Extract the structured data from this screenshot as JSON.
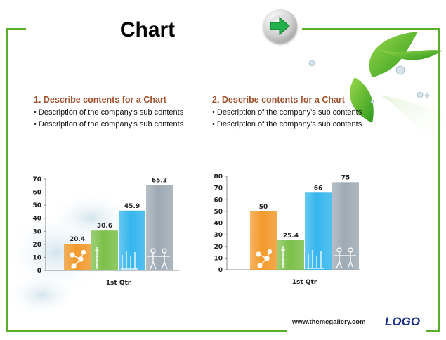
{
  "slide": {
    "title": "Chart",
    "website": "www.themegallery.com",
    "logo": "LOGO",
    "accent_color": "#5aae2a",
    "heading_color": "#a0522d",
    "next_button_icon": "green-right-arrow-icon"
  },
  "sections": [
    {
      "heading": "1. Describe contents for a Chart",
      "bullets": [
        "• Description of the company's sub contents",
        "• Description of the company's sub contents"
      ]
    },
    {
      "heading": "2. Describe contents for a Chart",
      "bullets": [
        "• Description of the company's sub contents",
        "• Description of the company's sub contents"
      ]
    }
  ],
  "chart_data": [
    {
      "type": "bar",
      "categories": [
        "1st Qtr"
      ],
      "series": [
        {
          "values": [
            20.4
          ],
          "color": "#f39a2d"
        },
        {
          "values": [
            30.6
          ],
          "color": "#7cc04a"
        },
        {
          "values": [
            45.9
          ],
          "color": "#35b6ee"
        },
        {
          "values": [
            65.3
          ],
          "color": "#9eaab4"
        }
      ],
      "ylim": [
        0,
        70
      ],
      "yticks": [
        0,
        10,
        20,
        30,
        40,
        50,
        60,
        70
      ],
      "grid": false,
      "legend": "none"
    },
    {
      "type": "bar",
      "categories": [
        "1st Qtr"
      ],
      "series": [
        {
          "values": [
            50
          ],
          "color": "#f39a2d"
        },
        {
          "values": [
            25.4
          ],
          "color": "#7cc04a"
        },
        {
          "values": [
            66
          ],
          "color": "#35b6ee"
        },
        {
          "values": [
            75
          ],
          "color": "#9eaab4"
        }
      ],
      "ylim": [
        0,
        80
      ],
      "yticks": [
        0,
        10,
        20,
        30,
        40,
        50,
        60,
        70,
        80
      ],
      "grid": false,
      "legend": "none"
    }
  ]
}
